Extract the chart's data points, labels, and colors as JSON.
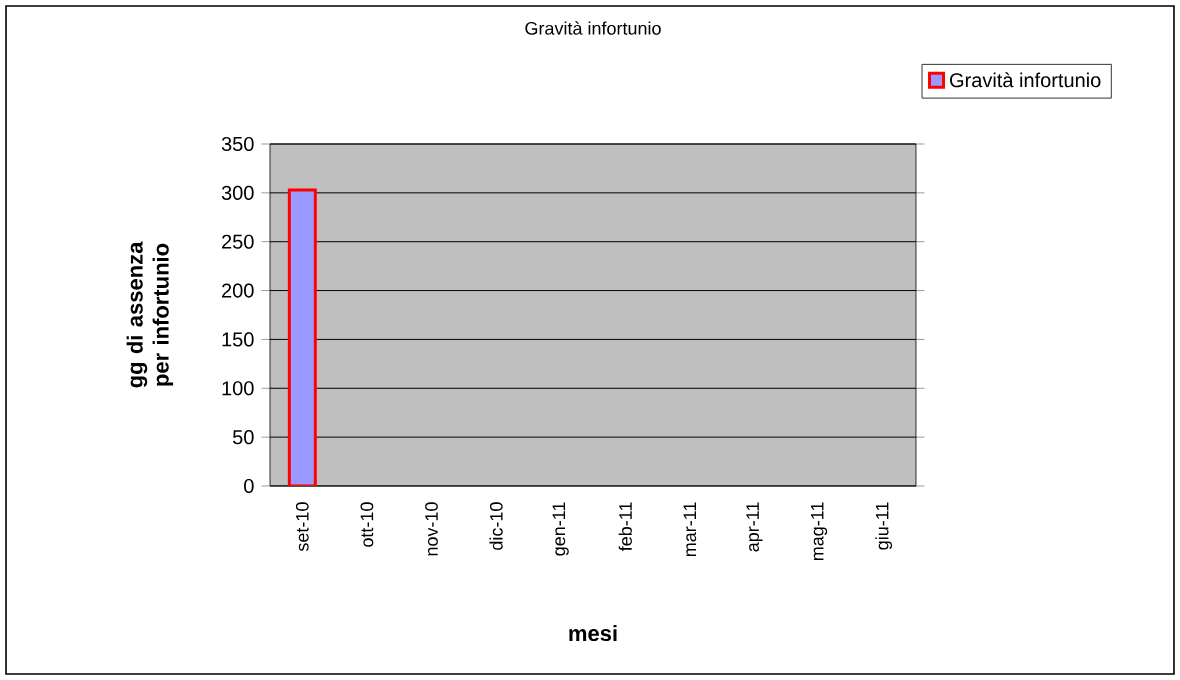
{
  "chart_data": {
    "type": "bar",
    "title": "Gravità infortunio",
    "xlabel": "mesi",
    "ylabel": "gg di assenza per infortunio",
    "categories": [
      "set-10",
      "ott-10",
      "nov-10",
      "dic-10",
      "gen-11",
      "feb-11",
      "mar-11",
      "apr-11",
      "mag-11",
      "giu-11"
    ],
    "series": [
      {
        "name": "Gravità infortunio",
        "color": "#9999ff",
        "values": [
          303,
          null,
          null,
          null,
          null,
          null,
          null,
          null,
          null,
          null
        ]
      }
    ],
    "ylim": [
      0,
      350
    ],
    "yticks": [
      0,
      50,
      100,
      150,
      200,
      250,
      300,
      350
    ],
    "grid": "y",
    "legend": "top right"
  }
}
